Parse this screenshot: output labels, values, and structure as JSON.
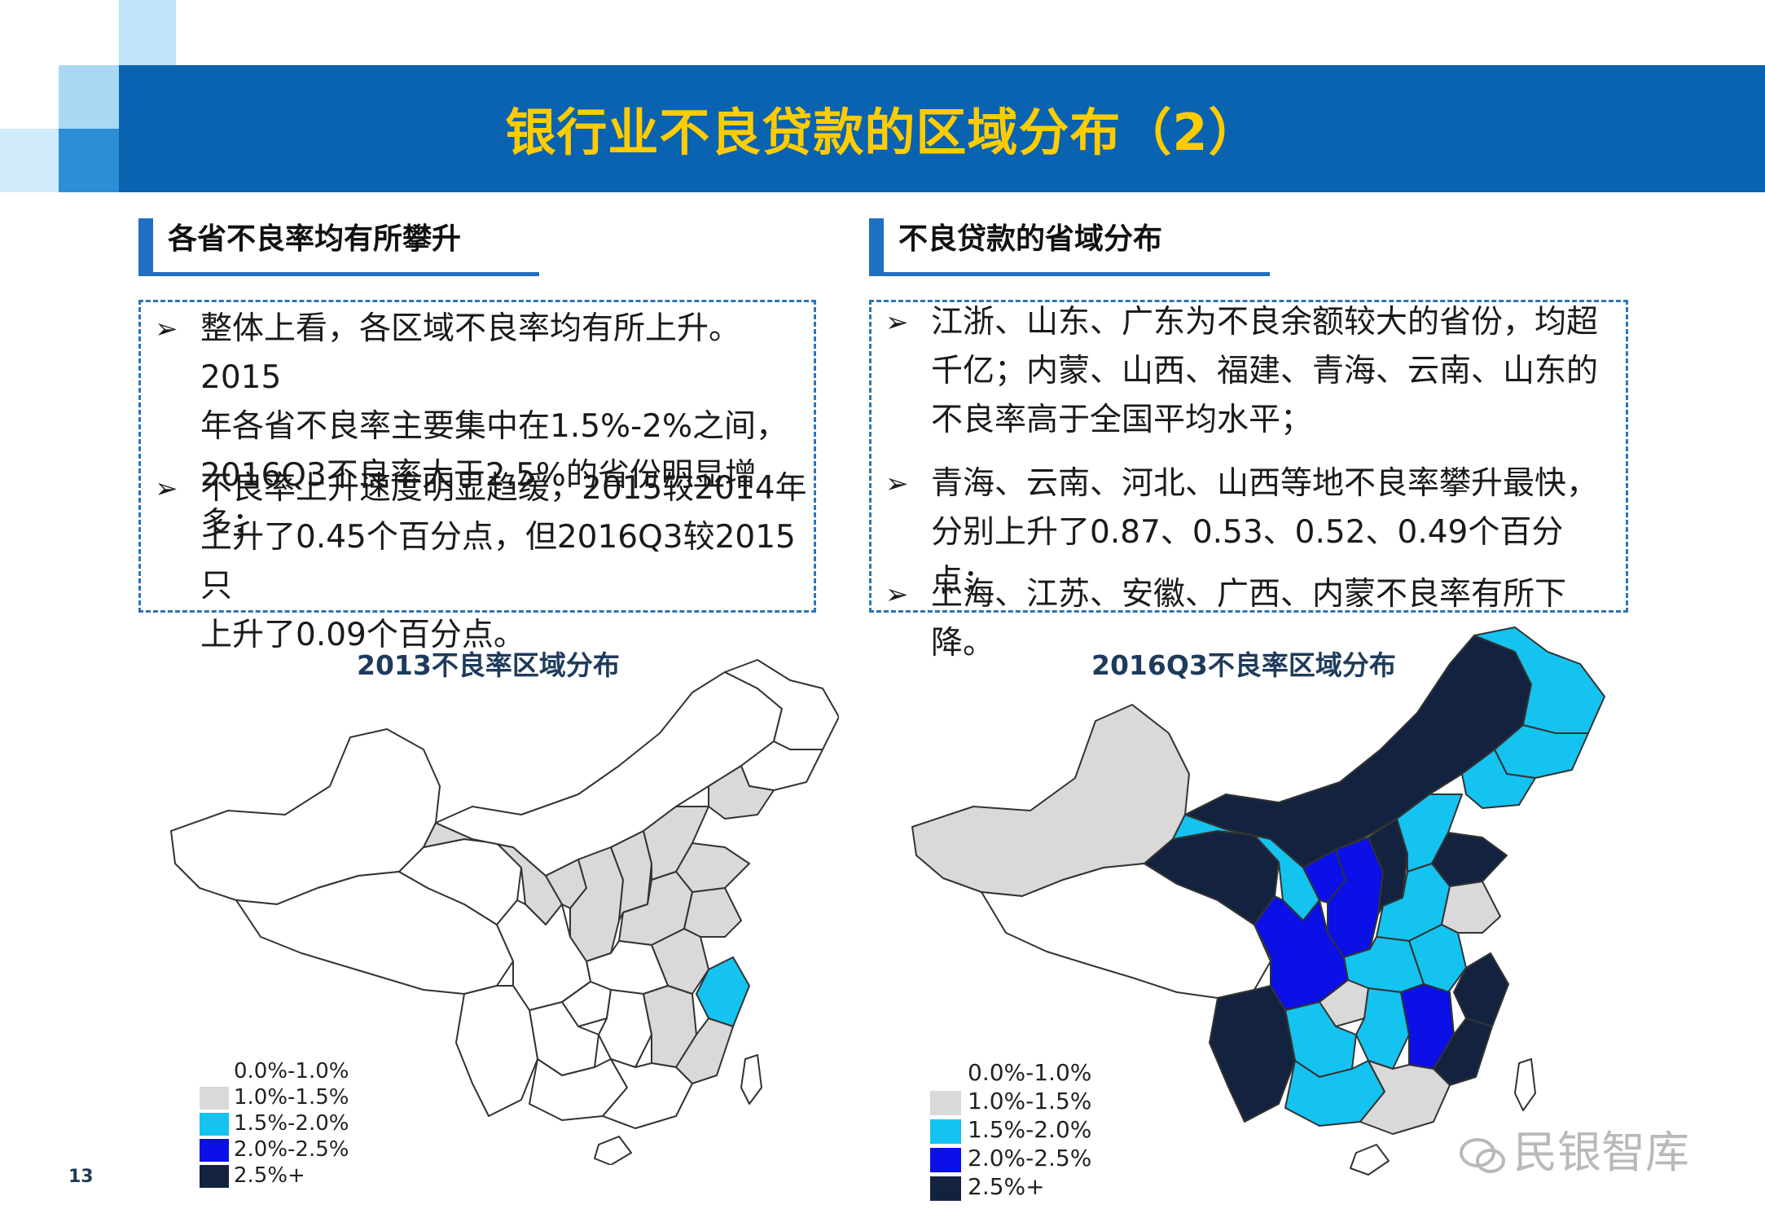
{
  "header": {
    "title": "银行业不良贷款的区域分布（2）"
  },
  "colors": {
    "legend": [
      "#ffffff",
      "#d9d9d9",
      "#14c3f0",
      "#0a10e6",
      "#13233f"
    ],
    "accent": "#0a63b0",
    "title_text": "#ffcc00"
  },
  "left": {
    "heading": "各省不良率均有所攀升",
    "bullets": [
      {
        "lines": [
          "整体上看，各区域不良率均有所上升。2015",
          "年各省不良率主要集中在1.5%-2%之间，",
          "2016Q3不良率大于2.5%的省份明显增多；"
        ]
      },
      {
        "lines": [
          "不良率上升速度明显趋缓，2015较2014年",
          "上升了0.45个百分点，但2016Q3较2015只",
          "上升了0.09个百分点。"
        ]
      }
    ],
    "map_title": "2013不良率区域分布"
  },
  "right": {
    "heading": "不良贷款的省域分布",
    "bullets": [
      {
        "lines": [
          "江浙、山东、广东为不良余额较大的省份，均超",
          "千亿；内蒙、山西、福建、青海、云南、山东的",
          "不良率高于全国平均水平；"
        ]
      },
      {
        "lines": [
          "青海、云南、河北、山西等地不良率攀升最快，",
          "分别上升了0.87、0.53、0.52、0.49个百分点；"
        ]
      },
      {
        "lines": [
          "上海、江苏、安徽、广西、内蒙不良率有所下降。"
        ]
      }
    ],
    "map_title": "2016Q3不良率区域分布"
  },
  "legend": [
    "0.0%-1.0%",
    "1.0%-1.5%",
    "1.5%-2.0%",
    "2.0%-2.5%",
    "2.5%+"
  ],
  "page_number": "13",
  "watermark": "民银智库",
  "bullet_glyph": "➢"
}
